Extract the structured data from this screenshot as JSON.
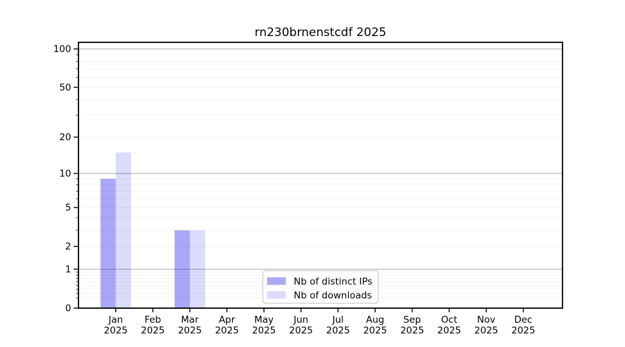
{
  "chart_data": {
    "type": "bar",
    "title": "rn230brnenstcdf 2025",
    "categories": [
      "Jan 2025",
      "Feb 2025",
      "Mar 2025",
      "Apr 2025",
      "May 2025",
      "Jun 2025",
      "Jul 2025",
      "Aug 2025",
      "Sep 2025",
      "Oct 2025",
      "Nov 2025",
      "Dec 2025"
    ],
    "series": [
      {
        "name": "Nb of distinct IPs",
        "color": "#a9a9f4",
        "alpha": 0.34,
        "values": [
          9,
          0,
          3,
          0,
          0,
          0,
          0,
          0,
          0,
          0,
          0,
          0
        ]
      },
      {
        "name": "Nb of downloads",
        "color": "#dcdcfa",
        "alpha": 0.14,
        "values": [
          15,
          0,
          3,
          0,
          0,
          0,
          0,
          0,
          0,
          0,
          0,
          0
        ]
      }
    ],
    "xlabel": "",
    "ylabel": "",
    "yscale": "log1p",
    "ylim": [
      0,
      112
    ],
    "yticks": [
      100,
      50,
      20,
      10,
      5,
      2,
      1,
      0
    ],
    "y_major_gridlines": [
      1,
      10,
      100
    ],
    "y_minor_ticks": [
      0.2,
      0.3,
      0.4,
      0.5,
      0.6,
      0.7,
      0.8,
      0.9,
      3,
      4,
      6,
      7,
      8,
      9,
      30,
      40,
      60,
      70,
      80,
      90
    ],
    "grid": "horizontal only; darker lines at powers of 10, faint minor lines elsewhere",
    "legend": {
      "position": "lower center",
      "entries": [
        "Nb of distinct IPs",
        "Nb of downloads"
      ]
    },
    "style": {
      "bar_base_color": "#0000e6",
      "grid_major_color": "#b0b0b0",
      "grid_minor_color": "#f0f0f0",
      "axis_color": "#000000",
      "background": "#ffffff",
      "legend_border": "#cccccc"
    }
  }
}
